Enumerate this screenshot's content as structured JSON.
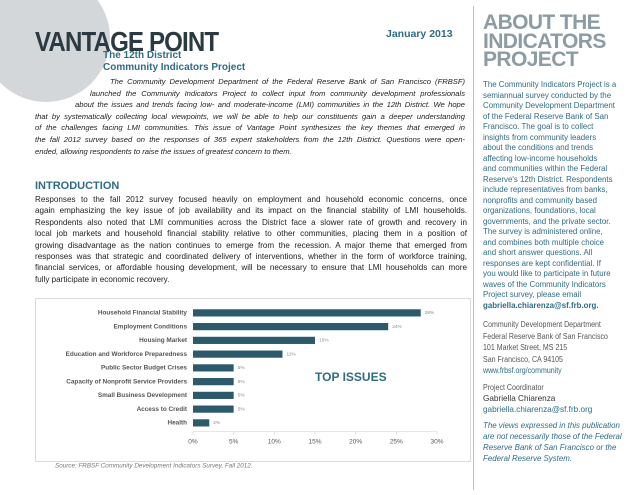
{
  "header": {
    "title": "VANTAGE POINT",
    "subtitle_lines": [
      "The 12th District",
      "Community Indicators Project"
    ],
    "date": "January 2013"
  },
  "summary_lines": [
    "The Community Development Department of the Federal Reserve Bank of San Francisco (FRBSF)",
    "launched the Community Indicators Project to collect input from community development professionals",
    "about the issues and trends facing low- and moderate-income (LMI) communities in the 12th District. We hope",
    "that by systematically collecting local viewpoints, we will be able to help our constituents gain a deeper understanding",
    "of the challenges facing LMI communities. This issue of Vantage Point synthesizes the key themes that emerged in",
    "the fall 2012 survey based on the responses of 365 expert stakeholders from the 12th District. Questions were open-",
    "ended, allowing respondents to raise the issues of greatest concern to them."
  ],
  "introduction": {
    "heading": "INTRODUCTION",
    "lines": [
      "Responses to the fall 2012 survey focused heavily on employment and household economic concerns, once",
      "again emphasizing the key issue of job availability and its impact on the financial stability of LMI households.",
      "Respondents also noted that LMI communities across the District face a slower rate of growth and recovery in",
      "local job markets and household financial stability relative to other communities, placing them in a position of",
      "growing disadvantage as the nation continues to emerge from the recession. A major theme that emerged from",
      "responses was that strategic and coordinated delivery of interventions, whether in the form of workforce training,",
      "financial services, or affordable housing development, will be necessary to ensure that LMI households can more",
      "fully participate in economic recovery."
    ]
  },
  "chart_data": {
    "type": "bar",
    "orientation": "horizontal",
    "title": "TOP ISSUES",
    "categories": [
      "Household Financial Stability",
      "Employment Conditions",
      "Housing Market",
      "Education and Workforce Preparedness",
      "Public Sector Budget Crises",
      "Capacity of Nonprofit Service Providers",
      "Small Business Development",
      "Access to Credit",
      "Health"
    ],
    "values": [
      28,
      24,
      15,
      11,
      5,
      5,
      5,
      5,
      2
    ],
    "value_labels": [
      "28%",
      "24%",
      "15%",
      "11%",
      "5%",
      "5%",
      "5%",
      "5%",
      "2%"
    ],
    "color": "#2c5a6a",
    "xlim": [
      0,
      30
    ],
    "xticks": [
      {
        "value": 0,
        "label": "0%"
      },
      {
        "value": 5,
        "label": "5%"
      },
      {
        "value": 10,
        "label": "10%"
      },
      {
        "value": 15,
        "label": "15%"
      },
      {
        "value": 20,
        "label": "20%"
      },
      {
        "value": 25,
        "label": "25%"
      },
      {
        "value": 30,
        "label": "30%"
      }
    ],
    "source": "Source: FRBSF Community Development Indicators Survey, Fall 2012."
  },
  "sidebar": {
    "heading_lines": [
      "ABOUT THE",
      "INDICATORS",
      "PROJECT"
    ],
    "body_lines": [
      "The Community Indicators Project is a",
      "semiannual survey conducted by the",
      "Community Development Department",
      "of the Federal Reserve Bank of San",
      "Francisco. The goal is to collect",
      "insights from community leaders",
      "about the conditions and trends",
      "affecting low-income households",
      "and communities within the Federal",
      "Reserve's 12th District. Respondents",
      "include representatives from banks,",
      "nonprofits and community based",
      "organizations, foundations, local",
      "governments, and the private sector.",
      "The survey is administered online,",
      "and combines both multiple choice",
      "and short answer questions. All",
      "responses are kept confidential. If",
      "you would like to participate in future",
      "waves of the Community Indicators",
      "Project survey, please email"
    ],
    "email": "gabriella.chiarenza@sf.frb.org.",
    "contact_lines": [
      "Community Development Department",
      "Federal Reserve Bank of San Francisco",
      "101 Market Street, MS 215",
      "San Francisco, CA 94105"
    ],
    "website": "www.frbsf.org/community",
    "coordinator_label": "Project Coordinator",
    "coordinator_name": "Gabriella Chiarenza",
    "coordinator_email": "gabriella.chiarenza@sf.frb.org",
    "disclaimer_lines": [
      "The views expressed in this publication",
      "are not necessarily those of the Federal",
      "Reserve Bank of San Francisco or the",
      "Federal Reserve System."
    ]
  }
}
